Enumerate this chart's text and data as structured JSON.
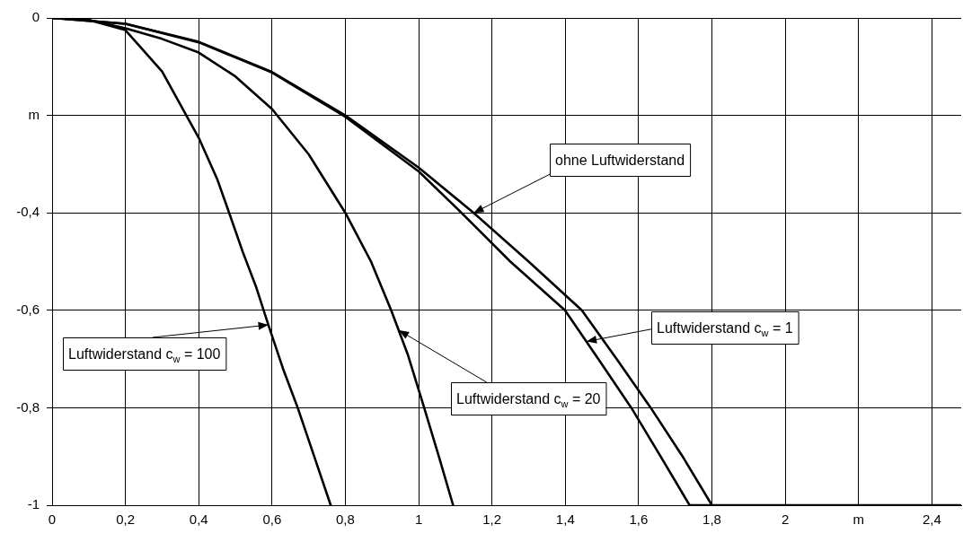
{
  "chart_data": {
    "type": "line",
    "ylabel": null,
    "xlim": [
      0,
      2.48
    ],
    "ylim": [
      -1,
      0
    ],
    "xticks": [
      0,
      {
        "value": 0.2,
        "label": "0,2"
      },
      {
        "value": 0.4,
        "label": "0,4"
      },
      {
        "value": 0.6,
        "label": "0,6"
      },
      {
        "value": 0.8,
        "label": "0,8"
      },
      1,
      {
        "value": 1.2,
        "label": "1,2"
      },
      {
        "value": 1.4,
        "label": "1,4"
      },
      {
        "value": 1.6,
        "label": "1,6"
      },
      {
        "value": 1.8,
        "label": "1,8"
      },
      2,
      {
        "value": 2.2,
        "label": "m"
      },
      {
        "value": 2.4,
        "label": "2,4"
      }
    ],
    "yticks": [
      0,
      {
        "value": -0.2,
        "label": "m"
      },
      {
        "value": -0.4,
        "label": "-0,4"
      },
      {
        "value": -0.6,
        "label": "-0,6"
      },
      {
        "value": -0.8,
        "label": "-0,8"
      },
      -1
    ],
    "grid": true,
    "legend": false,
    "marker": "none",
    "line_style": "solid",
    "series": [
      {
        "color": "#000000",
        "x": [
          0,
          0.2,
          0.4,
          0.6,
          0.8,
          1.0,
          1.15,
          1.3,
          1.445,
          1.54,
          1.633,
          1.72,
          1.8
        ],
        "values": [
          0,
          -0.012,
          -0.049,
          -0.111,
          -0.2,
          -0.307,
          -0.4,
          -0.5,
          -0.6,
          -0.7,
          -0.8,
          -0.9,
          -1
        ]
      },
      {
        "color": "#000000",
        "x": [
          0,
          0.2,
          0.4,
          0.6,
          0.8,
          1.0,
          1.117,
          1.25,
          1.399,
          1.49,
          1.58,
          1.66,
          1.739,
          2.48
        ],
        "values": [
          0,
          -0.012,
          -0.05,
          -0.112,
          -0.203,
          -0.315,
          -0.4,
          -0.5,
          -0.6,
          -0.7,
          -0.8,
          -0.9,
          -1,
          -1
        ]
      },
      {
        "color": "#000000",
        "x": [
          0,
          0.1,
          0.2,
          0.3,
          0.4,
          0.5,
          0.6,
          0.7,
          0.8,
          0.87,
          0.925,
          0.97,
          1.015,
          1.055,
          1.094
        ],
        "values": [
          0,
          -0.004,
          -0.021,
          -0.043,
          -0.071,
          -0.12,
          -0.187,
          -0.28,
          -0.4,
          -0.5,
          -0.6,
          -0.69,
          -0.8,
          -0.9,
          -1
        ]
      },
      {
        "color": "#000000",
        "x": [
          0,
          0.1,
          0.2,
          0.3,
          0.4,
          0.45,
          0.483,
          0.52,
          0.557,
          0.59,
          0.63,
          0.67,
          0.715,
          0.76
        ],
        "values": [
          0,
          -0.004,
          -0.025,
          -0.11,
          -0.246,
          -0.33,
          -0.4,
          -0.48,
          -0.553,
          -0.63,
          -0.72,
          -0.8,
          -0.9,
          -1
        ]
      }
    ],
    "annotations": [
      {
        "text": "ohne Luftwiderstand",
        "x": 1.15,
        "y": -0.4
      },
      {
        "text": "Luftwiderstand c$_{w}$ = 1",
        "x": 1.458,
        "y": -0.664
      },
      {
        "text": "Luftwiderstand c$_{w}$ = 20",
        "x": 0.946,
        "y": -0.641
      },
      {
        "text": "Luftwiderstand c$_{w}$ = 100",
        "x": 0.59,
        "y": -0.63
      }
    ]
  }
}
